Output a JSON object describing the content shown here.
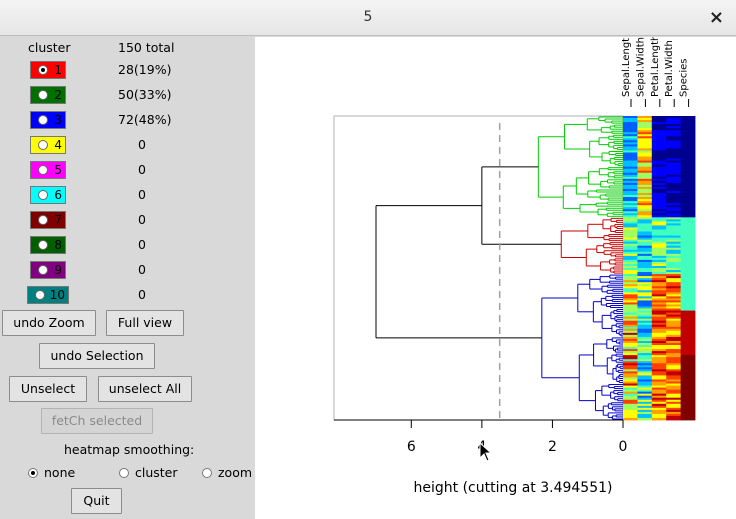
{
  "window": {
    "title": "5",
    "close_glyph": "×"
  },
  "clusters": {
    "header_cluster": "cluster",
    "header_total": "150 total",
    "items": [
      {
        "label": "1",
        "count": "28(19%)",
        "color": "#ff0000",
        "selected": true
      },
      {
        "label": "2",
        "count": "50(33%)",
        "color": "#007000",
        "selected": false
      },
      {
        "label": "3",
        "count": "72(48%)",
        "color": "#0000ff",
        "selected": false
      },
      {
        "label": "4",
        "count": "0",
        "color": "#ffff00",
        "selected": false
      },
      {
        "label": "5",
        "count": "0",
        "color": "#ff00ff",
        "selected": false
      },
      {
        "label": "6",
        "count": "0",
        "color": "#00ffff",
        "selected": false
      },
      {
        "label": "7",
        "count": "0",
        "color": "#800000",
        "selected": false
      },
      {
        "label": "8",
        "count": "0",
        "color": "#006000",
        "selected": false
      },
      {
        "label": "9",
        "count": "0",
        "color": "#800080",
        "selected": false
      },
      {
        "label": "10",
        "count": "0",
        "color": "#008080",
        "selected": false
      }
    ]
  },
  "buttons": {
    "undo_zoom": "undo Zoom",
    "full_view": "Full view",
    "undo_selection": "undo Selection",
    "unselect": "Unselect",
    "unselect_all": "unselect All",
    "fetch_selected": "fetCh selected",
    "quit": "Quit"
  },
  "smoothing": {
    "label": "heatmap smoothing:",
    "options": [
      "none",
      "cluster",
      "zoom"
    ],
    "selected": "none"
  },
  "chart_data": {
    "type": "heatmap",
    "xlabel": "height (cutting at 3.494551)",
    "x_ticks": [
      6,
      4,
      2,
      0
    ],
    "x_reversed": true,
    "xlim": [
      7,
      0
    ],
    "cut_height": 3.494551,
    "variables": [
      "Sepal.Length",
      "Sepal.Width",
      "Petal.Length",
      "Petal.Width",
      "Species"
    ],
    "cluster_colors": [
      "#00cc00",
      "#cc0000",
      "#0000cc"
    ],
    "cluster_sizes": [
      50,
      28,
      72
    ]
  }
}
